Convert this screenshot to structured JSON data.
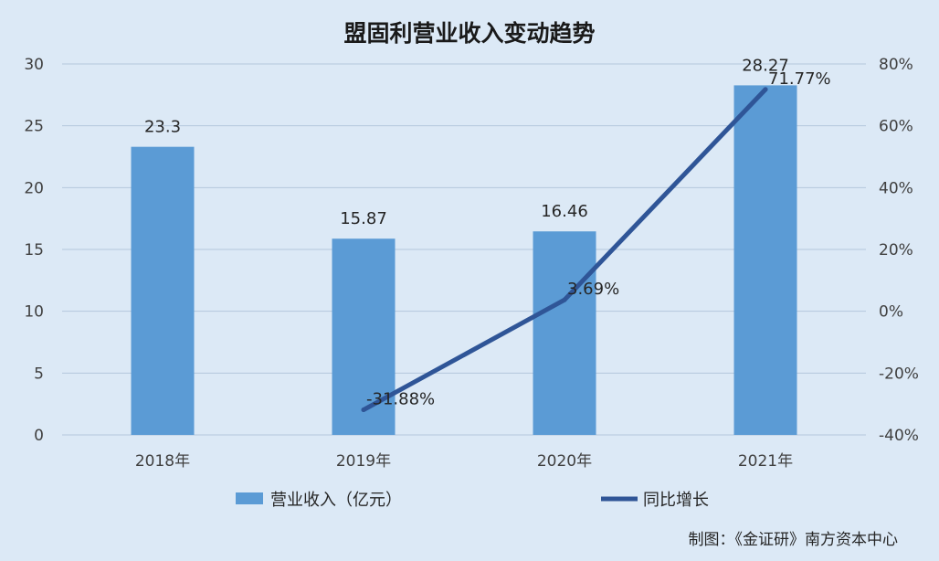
{
  "chart_data": {
    "type": "bar",
    "title": "盟固利营业收入变动趋势",
    "categories": [
      "2018年",
      "2019年",
      "2020年",
      "2021年"
    ],
    "series": [
      {
        "name": "营业收入（亿元）",
        "type": "bar",
        "axis": "left",
        "values": [
          23.3,
          15.87,
          16.46,
          28.27
        ],
        "labels": [
          "23.3",
          "15.87",
          "16.46",
          "28.27"
        ],
        "color": "#5b9bd5"
      },
      {
        "name": "同比增长",
        "type": "line",
        "axis": "right",
        "values": [
          null,
          -31.88,
          3.69,
          71.77
        ],
        "labels": [
          "",
          "-31.88%",
          "3.69%",
          "71.77%"
        ],
        "color": "#2f5597"
      }
    ],
    "y_left": {
      "min": 0,
      "max": 30,
      "ticks": [
        "0",
        "5",
        "10",
        "15",
        "20",
        "25",
        "30"
      ]
    },
    "y_right": {
      "min": -40,
      "max": 80,
      "ticks": [
        "-40%",
        "-20%",
        "0%",
        "20%",
        "40%",
        "60%",
        "80%"
      ]
    },
    "grid": true,
    "legend_position": "bottom"
  },
  "source_note": "制图：《金证研》南方资本中心",
  "colors": {
    "background": "#dce9f6",
    "grid": "#b4c7dc"
  }
}
